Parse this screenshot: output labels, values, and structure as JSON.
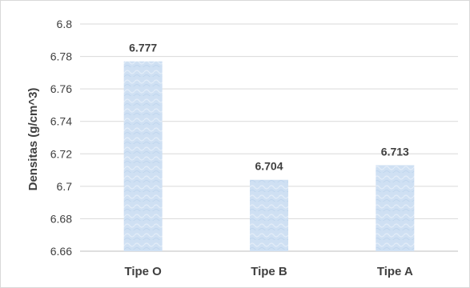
{
  "chart_data": {
    "type": "bar",
    "categories": [
      "Tipe O",
      "Tipe B",
      "Tipe A"
    ],
    "values": [
      6.777,
      6.704,
      6.713
    ],
    "data_labels": [
      "6.777",
      "6.704",
      "6.713"
    ],
    "title": "",
    "xlabel": "",
    "ylabel": "Densitas (g/cm^3)",
    "ylim": [
      6.66,
      6.8
    ],
    "yticks": [
      6.66,
      6.68,
      6.7,
      6.72,
      6.74,
      6.76,
      6.78,
      6.8
    ],
    "ytick_labels": [
      "6.66",
      "6.68",
      "6.7",
      "6.72",
      "6.74",
      "6.76",
      "6.78",
      "6.8"
    ],
    "grid": true,
    "legend": "none",
    "colors": {
      "bar_fill": "#cfe0f3",
      "bar_texture": "#e6eff9",
      "text": "#404040",
      "grid": "#d9d9d9"
    }
  }
}
